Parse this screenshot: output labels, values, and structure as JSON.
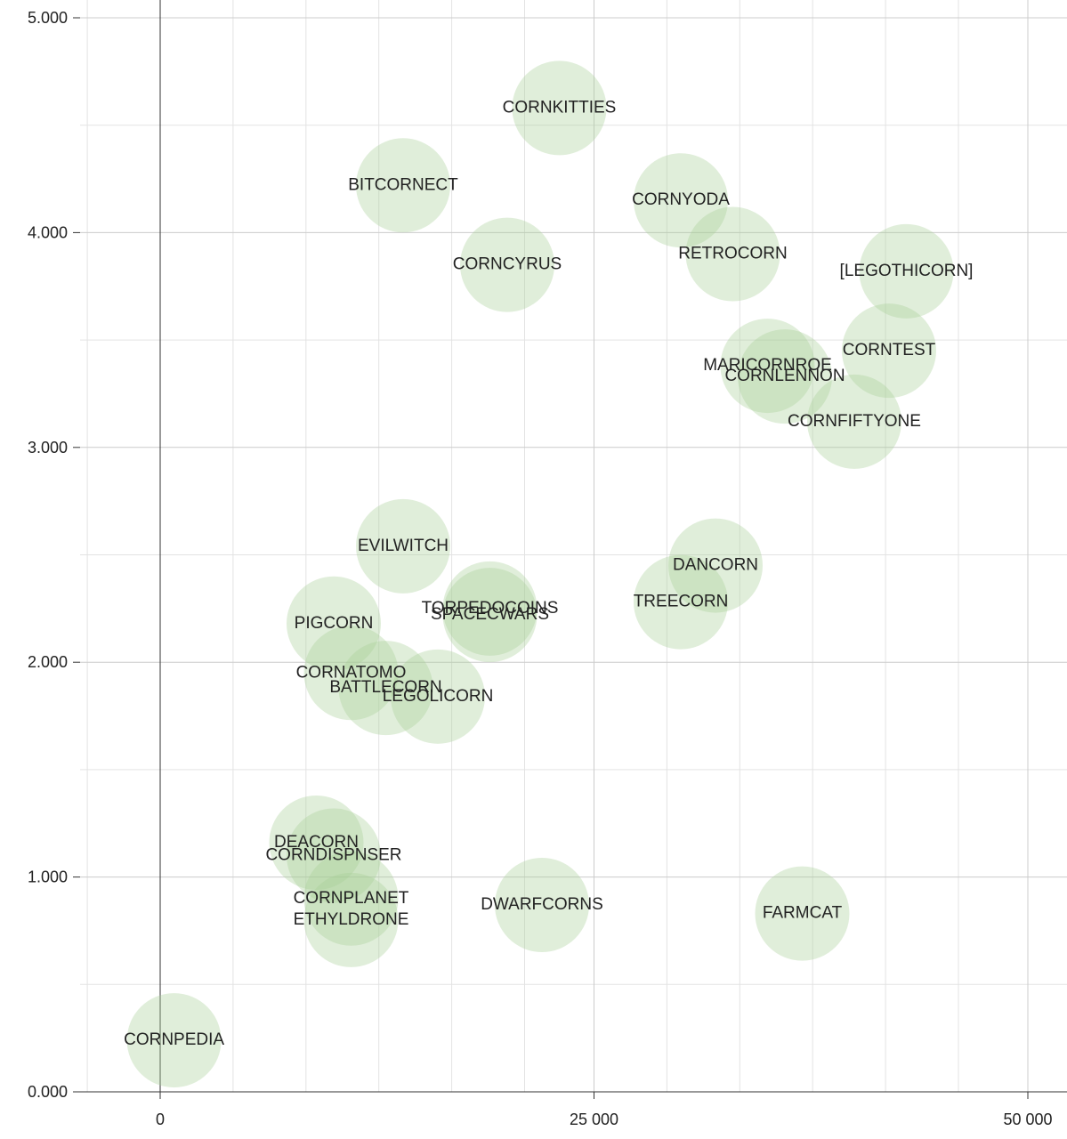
{
  "chart_data": {
    "type": "scatter",
    "title": "",
    "xlabel": "",
    "ylabel": "",
    "xlim": [
      -4500,
      53000
    ],
    "ylim": [
      0,
      5
    ],
    "x_ticks": [
      {
        "value": 0,
        "label": "0"
      },
      {
        "value": 25000,
        "label": "25 000"
      },
      {
        "value": 50000,
        "label": "50 000"
      }
    ],
    "y_ticks": [
      {
        "value": 0,
        "label": "0.000"
      },
      {
        "value": 1,
        "label": "1.000"
      },
      {
        "value": 2,
        "label": "2.000"
      },
      {
        "value": 3,
        "label": "3.000"
      },
      {
        "value": 4,
        "label": "4.000"
      },
      {
        "value": 5,
        "label": "5.000"
      }
    ],
    "x_minor_gridlines": [
      -4200,
      4200,
      8400,
      12600,
      16800,
      21000,
      29200,
      33400,
      37600,
      41800,
      46000
    ],
    "y_minor_gridlines": [
      0.5,
      1.5,
      2.5,
      3.5,
      4.5
    ],
    "bubble_color": "#a5cd94",
    "bubble_opacity": 0.35,
    "grid": true,
    "points": [
      {
        "name": "CORNKITTIES",
        "x": 23000,
        "y": 4.58
      },
      {
        "name": "BITCORNECT",
        "x": 14000,
        "y": 4.22
      },
      {
        "name": "CORNYODA",
        "x": 30000,
        "y": 4.15
      },
      {
        "name": "CORNCYRUS",
        "x": 20000,
        "y": 3.85
      },
      {
        "name": "RETROCORN",
        "x": 33000,
        "y": 3.9
      },
      {
        "name": "[LEGOTHICORN]",
        "x": 43000,
        "y": 3.82
      },
      {
        "name": "CORNTEST",
        "x": 42000,
        "y": 3.45
      },
      {
        "name": "MARICORNROE",
        "x": 35000,
        "y": 3.38
      },
      {
        "name": "CORNLENNON",
        "x": 36000,
        "y": 3.33
      },
      {
        "name": "CORNFIFTYONE",
        "x": 40000,
        "y": 3.12
      },
      {
        "name": "EVILWITCH",
        "x": 14000,
        "y": 2.54
      },
      {
        "name": "DANCORN",
        "x": 32000,
        "y": 2.45
      },
      {
        "name": "TORPEDOCOINS",
        "x": 19000,
        "y": 2.25
      },
      {
        "name": "SPACECWARS",
        "x": 19000,
        "y": 2.22
      },
      {
        "name": "TREECORN",
        "x": 30000,
        "y": 2.28
      },
      {
        "name": "PIGCORN",
        "x": 10000,
        "y": 2.18
      },
      {
        "name": "CORNATOMO",
        "x": 11000,
        "y": 1.95
      },
      {
        "name": "BATTLECORN",
        "x": 13000,
        "y": 1.88
      },
      {
        "name": "LEGOLICORN",
        "x": 16000,
        "y": 1.84
      },
      {
        "name": "DEACORN",
        "x": 9000,
        "y": 1.16
      },
      {
        "name": "CORNDISPNSER",
        "x": 10000,
        "y": 1.1
      },
      {
        "name": "CORNPLANET",
        "x": 11000,
        "y": 0.9
      },
      {
        "name": "ETHYLDRONE",
        "x": 11000,
        "y": 0.8
      },
      {
        "name": "DWARFCORNS",
        "x": 22000,
        "y": 0.87
      },
      {
        "name": "FARMCAT",
        "x": 37000,
        "y": 0.83
      },
      {
        "name": "CORNPEDIA",
        "x": 800,
        "y": 0.24
      }
    ]
  }
}
